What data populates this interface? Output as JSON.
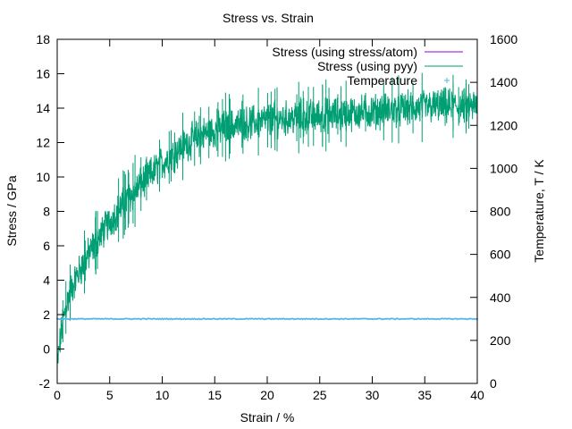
{
  "chart_data": {
    "type": "line",
    "title": "Stress vs. Strain",
    "xlabel": "Strain / %",
    "ylabel": "Stress / GPa",
    "y2label": "Temperature, T / K",
    "xlim": [
      0,
      40
    ],
    "ylim": [
      -2,
      18
    ],
    "y2lim": [
      0,
      1600
    ],
    "xticks": [
      "0",
      "5",
      "10",
      "15",
      "20",
      "25",
      "30",
      "35",
      "40"
    ],
    "yticks": [
      "-2",
      "0",
      "2",
      "4",
      "6",
      "8",
      "10",
      "12",
      "14",
      "16",
      "18"
    ],
    "y2ticks": [
      "0",
      "200",
      "400",
      "600",
      "800",
      "1000",
      "1200",
      "1400",
      "1600"
    ],
    "grid": false,
    "legend_position": "top-right",
    "series": [
      {
        "name": "Stress (using stress/atom)",
        "axis": "left",
        "color": "#9400d3",
        "style": "line",
        "x": [],
        "values": []
      },
      {
        "name": "Stress (using pyy)",
        "axis": "left",
        "color": "#009e73",
        "style": "noisy-line",
        "noise_band_gpa": 1.4,
        "x": [
          0,
          0.25,
          0.5,
          1,
          1.5,
          2,
          3,
          4,
          5,
          6,
          7,
          8,
          9,
          10,
          11,
          12,
          13,
          14,
          15,
          16,
          17,
          18,
          19,
          20,
          22,
          24,
          26,
          28,
          30,
          32,
          34,
          36,
          38,
          40
        ],
        "values": [
          -1.0,
          0.3,
          1.5,
          2.9,
          3.7,
          4.4,
          5.5,
          6.5,
          7.4,
          8.2,
          8.9,
          9.6,
          10.2,
          10.8,
          11.3,
          11.8,
          12.2,
          12.5,
          12.7,
          12.9,
          13.0,
          13.1,
          13.2,
          13.3,
          13.4,
          13.5,
          13.6,
          13.7,
          13.8,
          13.9,
          14.0,
          14.1,
          14.1,
          14.1
        ]
      },
      {
        "name": "Temperature",
        "axis": "right",
        "color": "#56b4e9",
        "style": "points",
        "x": [
          0,
          40
        ],
        "values": [
          300,
          300
        ]
      }
    ]
  }
}
